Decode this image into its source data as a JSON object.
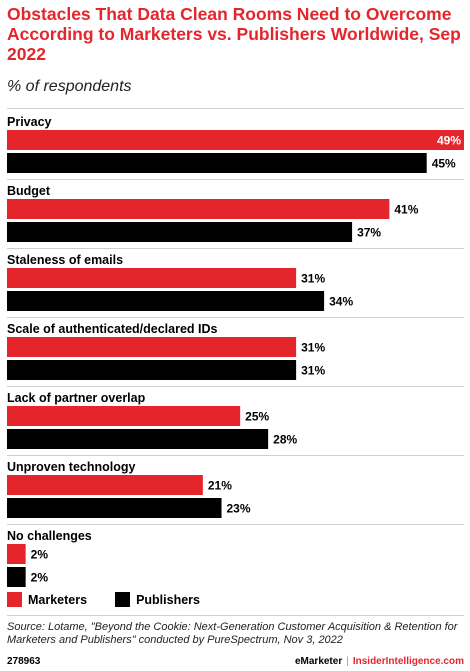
{
  "header": {
    "title": "Obstacles That Data Clean Rooms Need to Overcome According to Marketers vs. Publishers Worldwide, Sep 2022",
    "subtitle": "% of respondents"
  },
  "chart_data": {
    "type": "bar",
    "orientation": "horizontal",
    "title": "Obstacles That Data Clean Rooms Need to Overcome According to Marketers vs. Publishers Worldwide, Sep 2022",
    "subtitle": "% of respondents",
    "categories": [
      "Privacy",
      "Budget",
      "Staleness of emails",
      "Scale of authenticated/declared IDs",
      "Lack of partner overlap",
      "Unproven technology",
      "No challenges"
    ],
    "series": [
      {
        "name": "Marketers",
        "color": "#e4262c",
        "values": [
          49,
          41,
          31,
          31,
          25,
          21,
          2
        ]
      },
      {
        "name": "Publishers",
        "color": "#000000",
        "values": [
          45,
          37,
          34,
          31,
          28,
          23,
          2
        ]
      }
    ],
    "value_suffix": "%",
    "xlim": [
      0,
      49
    ],
    "grid": false,
    "legend_position": "bottom-left"
  },
  "legend": {
    "items": [
      "Marketers",
      "Publishers"
    ]
  },
  "source": "Source: Lotame, \"Beyond the Cookie: Next-Generation Customer Acquisition & Retention for Marketers and Publishers\" conducted by PureSpectrum, Nov 3, 2022",
  "footer": {
    "id": "278963",
    "brand_left": "eMarketer",
    "brand_right": "InsiderIntelligence.com"
  }
}
